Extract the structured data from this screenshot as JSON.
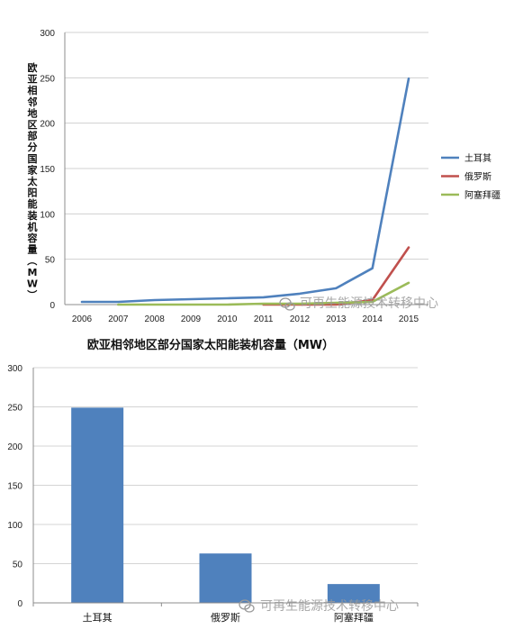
{
  "chart_data": [
    {
      "type": "line",
      "ylabel": "欧亚相邻地区部分国家太阳能装机容量（MW）",
      "x": [
        "2006",
        "2007",
        "2008",
        "2009",
        "2010",
        "2011",
        "2012",
        "2013",
        "2014",
        "2015"
      ],
      "ylim": [
        0,
        300
      ],
      "yticks": [
        0,
        50,
        100,
        150,
        200,
        250,
        300
      ],
      "grid": true,
      "legend_position": "right",
      "series": [
        {
          "name": "土耳其",
          "color": "#4f81bd",
          "values": [
            3,
            3,
            5,
            6,
            7,
            8,
            12,
            18,
            40,
            249
          ]
        },
        {
          "name": "俄罗斯",
          "color": "#c0504d",
          "values": [
            null,
            null,
            null,
            null,
            null,
            0,
            0,
            0,
            5,
            63
          ]
        },
        {
          "name": "阿塞拜疆",
          "color": "#9bbb59",
          "values": [
            null,
            0,
            0,
            0,
            0,
            1,
            1,
            2,
            3,
            24
          ]
        }
      ]
    },
    {
      "type": "bar",
      "title": "欧亚相邻地区部分国家太阳能装机容量（MW）",
      "categories": [
        "土耳其",
        "俄罗斯",
        "阿塞拜疆"
      ],
      "values": [
        249,
        63,
        24
      ],
      "color": "#4f81bd",
      "ylim": [
        0,
        300
      ],
      "yticks": [
        0,
        50,
        100,
        150,
        200,
        250,
        300
      ],
      "grid": true
    }
  ],
  "watermark": "可再生能源技术转移中心",
  "watermark_icon": "wechat-icon"
}
